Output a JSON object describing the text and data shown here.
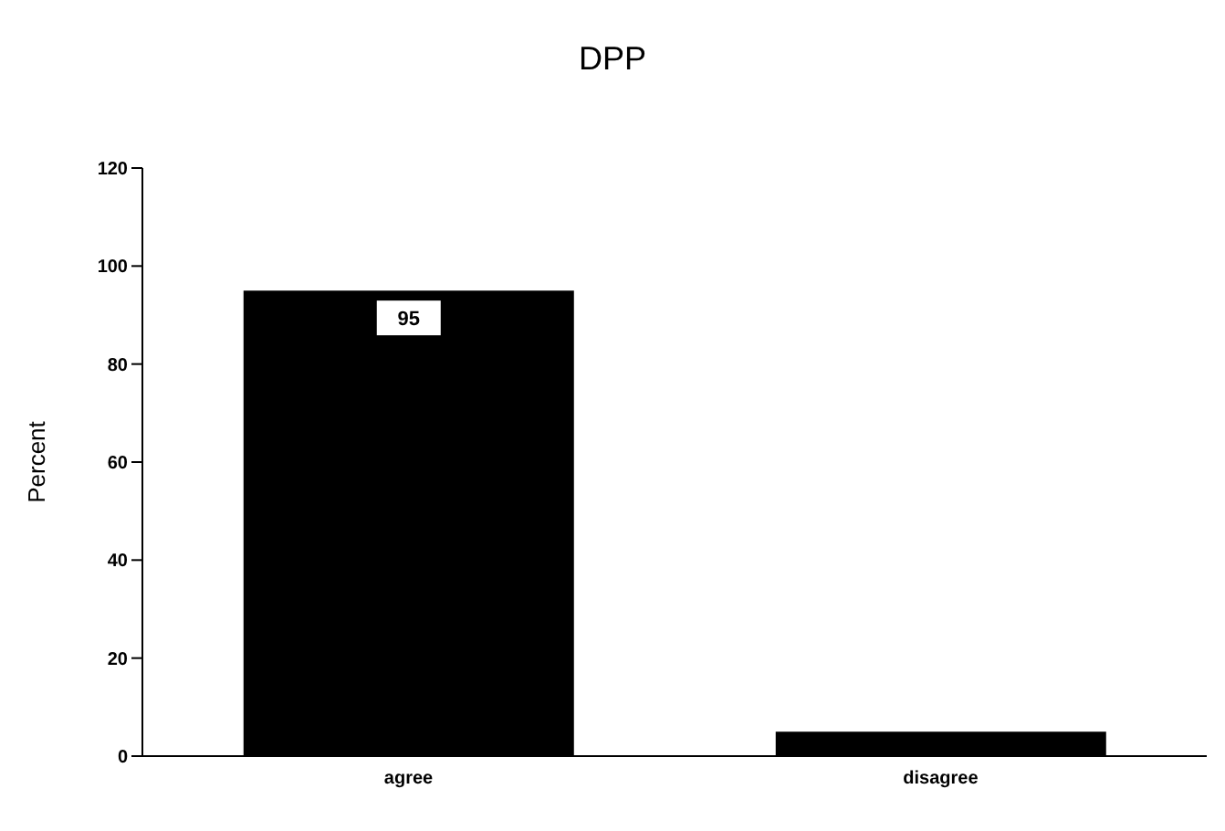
{
  "chart_data": {
    "type": "bar",
    "title": "DPP",
    "ylabel": "Percent",
    "categories": [
      "agree",
      "disagree"
    ],
    "values": [
      95,
      5
    ],
    "value_labels": [
      "95",
      null
    ],
    "color": "#000000",
    "ylim": [
      0,
      120
    ],
    "yticks": [
      0,
      20,
      40,
      60,
      80,
      100,
      120
    ],
    "grid": false
  }
}
